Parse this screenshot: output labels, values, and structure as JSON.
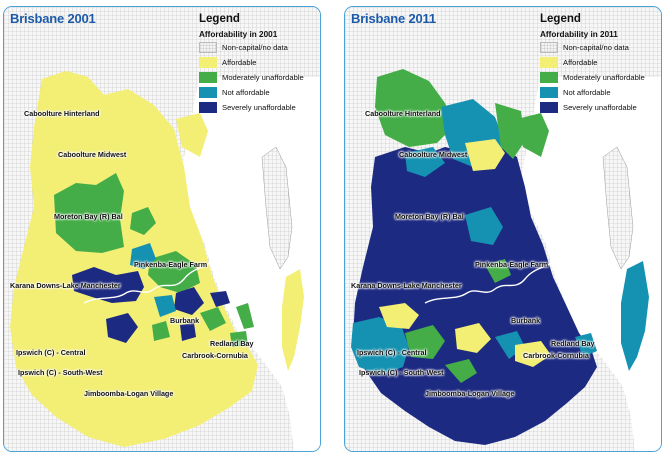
{
  "colors": {
    "no_data": "#f3f3f3",
    "affordable": "#f3ee74",
    "moderately_unaffordable": "#44ad47",
    "not_affordable": "#1592b1",
    "severely_unaffordable": "#1d2a82",
    "water": "#ffffff",
    "border": "#4aa3d6",
    "title": "#1c5aa8"
  },
  "legend": {
    "title": "Legend",
    "categories": [
      {
        "key": "no_data",
        "label": "Non-capital/no data"
      },
      {
        "key": "affordable",
        "label": "Affordable"
      },
      {
        "key": "moderately_unaffordable",
        "label": "Moderately unaffordable"
      },
      {
        "key": "not_affordable",
        "label": "Not affordable"
      },
      {
        "key": "severely_unaffordable",
        "label": "Severely unaffordable"
      }
    ]
  },
  "panels": [
    {
      "title": "Brisbane 2001",
      "legend_subtitle": "Affordability in 2001",
      "regions": [
        {
          "name": "Caboolture Hinterland",
          "category": "affordable"
        },
        {
          "name": "Caboolture Midwest",
          "category": "affordable"
        },
        {
          "name": "Moreton Bay (R) Bal",
          "category": "moderately_unaffordable"
        },
        {
          "name": "Pinkenba-Eagle Farm",
          "category": "affordable"
        },
        {
          "name": "Karana Downs-Lake Manchester",
          "category": "severely_unaffordable"
        },
        {
          "name": "Burbank",
          "category": "affordable"
        },
        {
          "name": "Redland Bay",
          "category": "affordable"
        },
        {
          "name": "Ipswich (C) - Central",
          "category": "affordable"
        },
        {
          "name": "Carbrook-Cornubia",
          "category": "affordable"
        },
        {
          "name": "Ipswich (C) - South-West",
          "category": "affordable"
        },
        {
          "name": "Jimboomba-Logan Village",
          "category": "affordable"
        }
      ]
    },
    {
      "title": "Brisbane 2011",
      "legend_subtitle": "Affordability in 2011",
      "regions": [
        {
          "name": "Caboolture Hinterland",
          "category": "moderately_unaffordable"
        },
        {
          "name": "Caboolture Midwest",
          "category": "affordable"
        },
        {
          "name": "Moreton Bay (R) Bal",
          "category": "severely_unaffordable"
        },
        {
          "name": "Pinkenba-Eagle Farm",
          "category": "severely_unaffordable"
        },
        {
          "name": "Karana Downs-Lake Manchester",
          "category": "severely_unaffordable"
        },
        {
          "name": "Burbank",
          "category": "severely_unaffordable"
        },
        {
          "name": "Redland Bay",
          "category": "severely_unaffordable"
        },
        {
          "name": "Ipswich (C) - Central",
          "category": "not_affordable"
        },
        {
          "name": "Carbrook-Cornubia",
          "category": "affordable"
        },
        {
          "name": "Ipswich (C) - South-West",
          "category": "not_affordable"
        },
        {
          "name": "Jimboomba-Logan Village",
          "category": "severely_unaffordable"
        }
      ]
    }
  ]
}
